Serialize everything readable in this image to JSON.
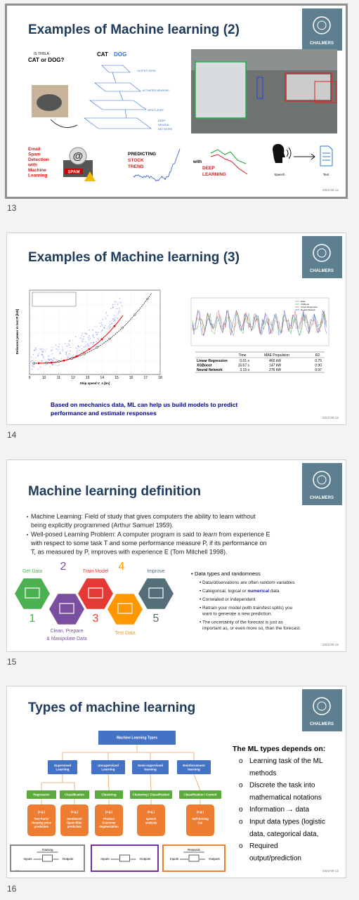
{
  "slides": [
    {
      "number": "13",
      "title": "Examples of Machine learning (2)",
      "date": "2023-05-12",
      "logo": "CHALMERS",
      "catdog": {
        "question_1": "IS THIS A",
        "question_2": "CAT or DOG?",
        "cat": "CAT",
        "dog": "DOG",
        "output_layer": "OUTPUT LAYER",
        "activated": "ACTIVATED NEURONS",
        "input_layer": "INPUT LAYER",
        "deep_1": "DEEP",
        "deep_2": "NEURAL",
        "deep_3": "NETWORK"
      },
      "spam": {
        "lines": [
          "Email",
          "Spam",
          "Detection",
          "with",
          "Machine",
          "Learning"
        ],
        "icon": "SPAM"
      },
      "stock": {
        "line_1": "PREDICTING",
        "line_2": "STOCK",
        "line_3": "TREND",
        "with": "with",
        "deep_1": "DEEP",
        "deep_2": "LEARNING"
      },
      "speech": {
        "from": "Speech",
        "to": "Text"
      }
    },
    {
      "number": "14",
      "title": "Examples of Machine learning (3)",
      "date": "2023-05-12",
      "logo": "CHALMERS",
      "plot": {
        "legend": [
          "Measurements in seaway",
          "Ballast condition",
          "Design load condition"
        ],
        "x_label": "Ship speed V_s [kn]",
        "y_label": "Delivered power in test P [kW]",
        "x_ticks": [
          "9",
          "10",
          "11",
          "12",
          "13",
          "14",
          "15",
          "16",
          "17",
          "18"
        ]
      },
      "prediction": {
        "legend": [
          "Data",
          "XGBoost",
          "Linear Regression",
          "Neural Network"
        ],
        "table": {
          "header": [
            "Time",
            "MAE Propulsion",
            "R2"
          ],
          "rows": [
            [
              "Linear Regression",
              "0.01 s",
              "460 kW",
              "0.75"
            ],
            [
              "XGBoost",
              "16.67 s",
              "147 kW",
              "0.90"
            ],
            [
              "Neural Network",
              "3.15 s",
              "276 kW",
              "0.97"
            ]
          ]
        }
      },
      "caption": [
        "Based on mechanics data, ML can help us build models to predict",
        "performance and estimate responses"
      ]
    },
    {
      "number": "15",
      "title": "Machine learning definition",
      "date": "2023-05-12",
      "logo": "CHALMERS",
      "bullets": [
        {
          "lines": [
            [
              "Machine Learning: Field of study that gives computers the ability to learn without"
            ],
            [
              "being explicitly programmed (Arthur Samuel 1959)."
            ]
          ]
        },
        {
          "lines": [
            [
              "Well-posed Learning Problem: A computer program is said to ",
              "learn",
              " from experience E"
            ],
            [
              "with respect to some task T and some performance measure P, if its performance on"
            ],
            [
              "T, as measured by P, improves with experience E (Tom Mitchell 1998)."
            ]
          ]
        }
      ],
      "cycle": [
        {
          "num": "1",
          "label": [
            "Get Data"
          ]
        },
        {
          "num": "2",
          "label": [
            "Clean, Prepare",
            "& Manipulate Data"
          ]
        },
        {
          "num": "3",
          "label": [
            "Train Model"
          ]
        },
        {
          "num": "4",
          "label": [
            "Test Data"
          ]
        },
        {
          "num": "5",
          "label": [
            "Improve"
          ]
        }
      ],
      "right": {
        "heading": "Data types and randomness",
        "items": [
          [
            [
              "Data/observations are often random variables"
            ]
          ],
          [
            [
              "Categorical, logical or ",
              "numerical",
              " data"
            ]
          ],
          [
            [
              "Correlated or independent"
            ]
          ],
          [
            [
              "Retrain your model (with train/test splits) you"
            ],
            [
              "want to generate a new prediction."
            ]
          ],
          [
            [
              "The uncertainty of the forecast is just as"
            ],
            [
              "important as, or even more so, than the forecast."
            ]
          ]
        ]
      }
    },
    {
      "number": "16",
      "title": "Types of machine learning",
      "date": "2023-05-12",
      "logo": "CHALMERS",
      "footer_number": "16",
      "tree": {
        "root": "Machine Learning Types",
        "level2": [
          [
            "Supervised",
            "Learning"
          ],
          [
            "Unsupervised",
            "Learning"
          ],
          [
            "Semi-supervised",
            "learning"
          ],
          [
            "Reinforcement",
            "learning"
          ]
        ],
        "level3": [
          "Regression",
          "Classification",
          "Clustering",
          "Clustering / Classification",
          "Classification / Control"
        ],
        "examples": [
          {
            "eg": "(e.g.)",
            "text": [
              "Test Parts/",
              "Housing price",
              "prediction"
            ]
          },
          {
            "eg": "(e.g.)",
            "text": [
              "Sentiment/",
              "Spam filter",
              "prediction"
            ]
          },
          {
            "eg": "(e.g.)",
            "text": [
              "Product",
              "Customer",
              "Segmentation"
            ]
          },
          {
            "eg": "(e.g.)",
            "text": [
              "speech",
              "analysis"
            ]
          },
          {
            "eg": "(e.g.)",
            "text": [
              "Self-Driving",
              "Car"
            ]
          }
        ],
        "flows": [
          {
            "top": "Training",
            "inputs": "Inputs",
            "outputs": "Outputs"
          },
          {
            "inputs": "Inputs",
            "outputs": "Outputs"
          },
          {
            "top": "Rewards",
            "inputs": "Inputs",
            "outputs": "Outputs"
          }
        ]
      },
      "right": {
        "heading": "The ML types depends on:",
        "items": [
          [
            "Learning task of the ML",
            "methods"
          ],
          [
            "Discrete the task into",
            "mathematical notations"
          ],
          [
            "Information → data"
          ],
          [
            "Input data types (logistic",
            "data, categorical data,"
          ],
          [
            "Required",
            "output/prediction"
          ]
        ]
      }
    }
  ]
}
